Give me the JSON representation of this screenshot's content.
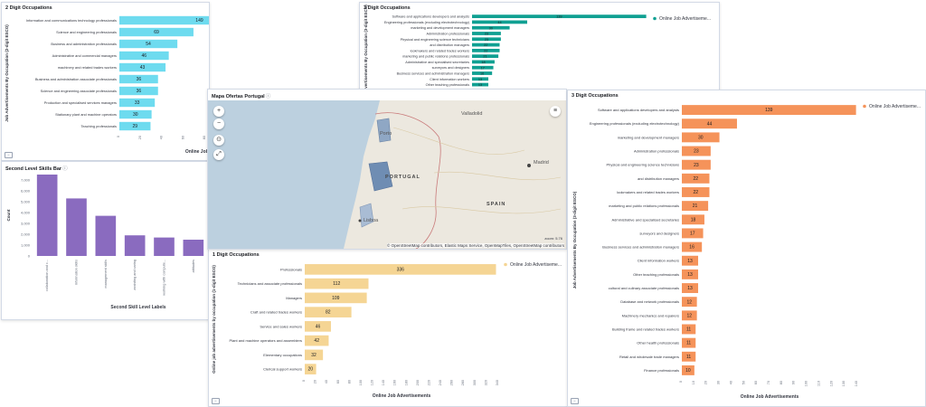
{
  "panels": {
    "p1": {
      "title": "2 Digit Occupations",
      "legend": "Online Job Advertiseme...",
      "xlabel": "Online Job Adverti"
    },
    "p2": {
      "title": "3 Digit Occupations",
      "legend": "Online Job Advertiseme..."
    },
    "p3": {
      "title": "Second Level Skills Bar",
      "xlabel": "Second Skill Level Labels",
      "ylabel": "Count"
    },
    "p4": {
      "title": "Mapa Ofertas Portugal"
    },
    "p5": {
      "title": "1 Digit Occupations",
      "legend": "Online Job Advertiseme...",
      "xlabel": "Online Job Advertisements"
    },
    "p6": {
      "title": "3 Digit Occupations",
      "legend": "Online Job Advertiseme...",
      "xlabel": "Online Job Advertisements"
    }
  },
  "map": {
    "labels": {
      "valladolid": "Valladolid",
      "portugal": "PORTUGAL",
      "madrid": "Madrid",
      "spain": "SPAIN",
      "lisboa": "Lisboa",
      "porto": "Porto"
    },
    "controls": {
      "zoom_in": "+",
      "zoom_out": "−",
      "fit": "⊙",
      "expand": "⤢"
    },
    "scale": "zoom: 5.76",
    "attribution": "© OpenStreetMap contributors, Elastic Maps Service, OpenMapTiles, OpenStreetMap contributors"
  },
  "colors": {
    "cyan": "#6edbef",
    "teal": "#10a092",
    "purple": "#8a6bbf",
    "tan": "#f5d594",
    "orange": "#f5935a"
  },
  "chart_data": [
    {
      "id": "p1",
      "type": "bar",
      "orientation": "horizontal",
      "title": "2 Digit Occupations",
      "ylabel": "Job Advertisements By Occupation (2-digit ESCO)",
      "xlabel": "Online Job Adverti",
      "categories": [
        "Information and communications technology professionals",
        "Science and engineering professionals",
        "Business and administration professionals",
        "Administrative and commercial managers",
        "machinery and related trades workers",
        "Business and administration associate professionals",
        "Science and engineering associate professionals",
        "Production and specialised services managers",
        "Stationary plant and machine operators",
        "Teaching professionals"
      ],
      "series": [
        {
          "name": "Online Job Advertiseme...",
          "values": [
            149,
            69,
            54,
            46,
            43,
            36,
            36,
            33,
            30,
            29
          ]
        }
      ],
      "xlim": [
        0,
        160
      ],
      "ticks": [
        "0",
        "20",
        "40",
        "60",
        "80",
        "100",
        "120",
        "140",
        "160"
      ]
    },
    {
      "id": "p2",
      "type": "bar",
      "orientation": "horizontal",
      "title": "3 Digit Occupations",
      "ylabel": "Job Advertisements By Occupation (3-digit ESCO)",
      "categories": [
        "Software and applications developers and analysts",
        "Engineering professionals (excluding electrotechnology)",
        "marketing and development managers",
        "Administration professionals",
        "Physical and engineering science technicians",
        "and distribution managers",
        "lookmakers and related trades workers",
        "marketing and public relations professionals",
        "Administrative and specialised secretaries",
        "surveyors and designers",
        "Business services and administration managers",
        "Client information workers",
        "Other teaching professionals",
        "cultural and culinary associate professionals"
      ],
      "series": [
        {
          "name": "Online Job Advertiseme...",
          "values": [
            139,
            44,
            30,
            23,
            23,
            22,
            22,
            21,
            18,
            17,
            16,
            13,
            13,
            13
          ]
        }
      ],
      "xlim": [
        0,
        140
      ]
    },
    {
      "id": "p3",
      "type": "bar",
      "title": "Second Level Skills Bar",
      "xlabel": "Second Skill Level Labels",
      "ylabel": "Count",
      "categories": [
        "collaboration and c...",
        "information skills",
        "management skills",
        "assisting and caring",
        "working with compute...",
        "attitudes"
      ],
      "values": [
        7500,
        5300,
        3700,
        1900,
        1700,
        1500
      ],
      "ylim": [
        0,
        7500
      ],
      "ticks": [
        "0",
        "1,000",
        "2,000",
        "3,000",
        "4,000",
        "5,000",
        "6,000",
        "7,000"
      ]
    },
    {
      "id": "p5",
      "type": "bar",
      "orientation": "horizontal",
      "title": "1 Digit Occupations",
      "ylabel": "Online job advertisements by occupation (1-digit ESCO)",
      "xlabel": "Online Job Advertisements",
      "categories": [
        "Professionals",
        "Technicians and associate professionals",
        "Managers",
        "Craft and related trades workers",
        "Service and sales workers",
        "Plant and machine operators and assemblers",
        "Elementary occupations",
        "Clerical support workers"
      ],
      "series": [
        {
          "name": "Online Job Advertiseme...",
          "values": [
            336,
            112,
            109,
            82,
            46,
            42,
            32,
            20
          ]
        }
      ],
      "xlim": [
        0,
        340
      ],
      "ticks": [
        "0",
        "20",
        "40",
        "60",
        "80",
        "100",
        "120",
        "140",
        "160",
        "180",
        "200",
        "220",
        "240",
        "260",
        "280",
        "300",
        "320",
        "340"
      ]
    },
    {
      "id": "p6",
      "type": "bar",
      "orientation": "horizontal",
      "title": "3 Digit Occupations",
      "ylabel": "Job Advertisements By Occupation (3-digit ESCO)",
      "xlabel": "Online Job Advertisements",
      "categories": [
        "Software and applications developers and analysts",
        "Engineering professionals (excluding electrotechnology)",
        "marketing and development managers",
        "Administration professionals",
        "Physical and engineering science technicians",
        "and distribution managers",
        "lookmakers and related trades workers",
        "marketing and public relations professionals",
        "Administrative and specialised secretaries",
        "surveyors and designers",
        "Business services and administration managers",
        "Client information workers",
        "Other teaching professionals",
        "cultural and culinary associate professionals",
        "Database and network professionals",
        "Machinery mechanics and repairers",
        "Building frame and related trades workers",
        "Other health professionals",
        "Retail and wholesale trade managers",
        "Finance professionals"
      ],
      "series": [
        {
          "name": "Online Job Advertiseme...",
          "values": [
            139,
            44,
            30,
            23,
            23,
            22,
            22,
            21,
            18,
            17,
            16,
            13,
            13,
            13,
            12,
            12,
            11,
            11,
            11,
            10
          ]
        }
      ],
      "xlim": [
        0,
        140
      ],
      "ticks": [
        "0",
        "10",
        "20",
        "30",
        "40",
        "50",
        "60",
        "70",
        "80",
        "90",
        "100",
        "110",
        "120",
        "130",
        "140"
      ]
    }
  ]
}
